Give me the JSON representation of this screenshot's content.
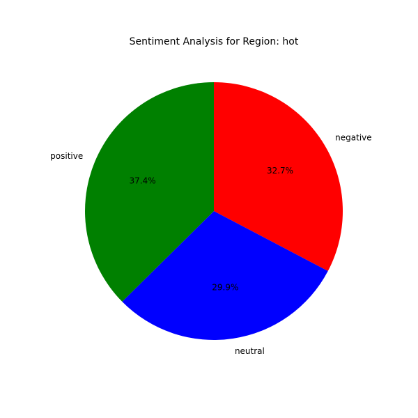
{
  "chart_data": {
    "type": "pie",
    "title": "Sentiment Analysis for Region: hot",
    "slices": [
      {
        "label": "negative",
        "value": 32.7,
        "pct_label": "32.7%",
        "color": "#ff0000"
      },
      {
        "label": "neutral",
        "value": 29.9,
        "pct_label": "29.9%",
        "color": "#0000ff"
      },
      {
        "label": "positive",
        "value": 37.4,
        "pct_label": "37.4%",
        "color": "#008000"
      }
    ],
    "start_angle_deg": 90,
    "direction": "clockwise",
    "legend": "none"
  }
}
